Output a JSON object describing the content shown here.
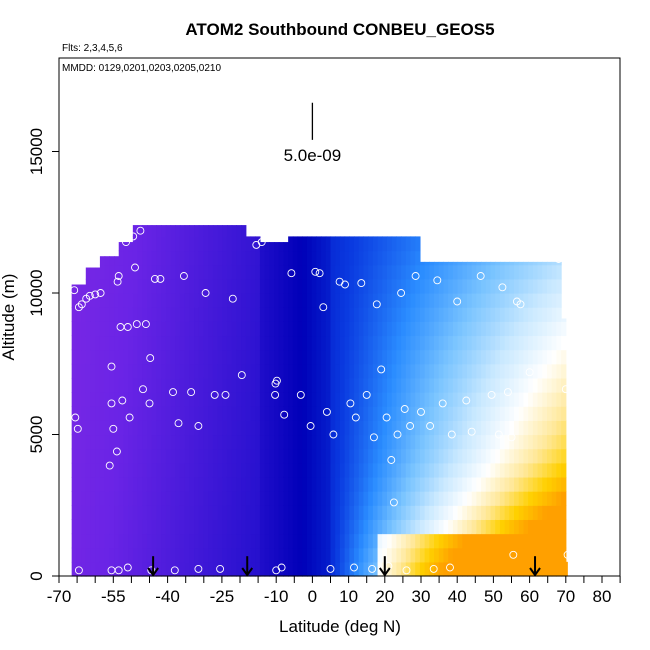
{
  "chart_data": {
    "type": "heatmap",
    "title": "ATOM2 Southbound CONBEU_GEOS5",
    "flights_label": "Flts: 2,3,4,5,6",
    "dates_label": "MMDD: 0129,0201,0203,0205,0210",
    "xlabel": "Latitude (deg N)",
    "ylabel": "Altitude (m)",
    "xlim": [
      -70,
      85
    ],
    "ylim": [
      0,
      17500
    ],
    "x_ticks": [
      -70,
      -65,
      -60,
      -55,
      -50,
      -45,
      -40,
      -35,
      -30,
      -25,
      -20,
      -15,
      -10,
      -5,
      0,
      5,
      10,
      15,
      20,
      25,
      30,
      35,
      40,
      45,
      50,
      55,
      60,
      65,
      70,
      75,
      80,
      85
    ],
    "x_tick_labels": [
      "-70",
      "-55",
      "-40",
      "-25",
      "-10",
      "0",
      "10",
      "20",
      "30",
      "40",
      "50",
      "60",
      "70",
      "80"
    ],
    "x_tick_label_values": [
      -70,
      -55,
      -40,
      -25,
      -10,
      0,
      10,
      20,
      30,
      40,
      50,
      60,
      70,
      80
    ],
    "y_ticks": [
      0,
      5000,
      10000,
      15000
    ],
    "y_tick_labels": [
      "0",
      "5000",
      "10000",
      "15000"
    ],
    "scale_bar": {
      "label": "5.0e-09",
      "x": 0,
      "y_bottom": 15800,
      "y_top": 17500
    },
    "color_scale": [
      "#8a2be2",
      "#6a24e6",
      "#2a12d0",
      "#0000b8",
      "#0a3ae0",
      "#2a8cff",
      "#7ac4ff",
      "#c8e8ff",
      "#ffffff",
      "#ffe89a",
      "#ffd000",
      "#ffa000"
    ],
    "field": {
      "note_top_boundary": "max altitude of gridded curtain per latitude (m)",
      "top_boundary": [
        [
          -66.5,
          10300
        ],
        [
          -62,
          10900
        ],
        [
          -59,
          11300
        ],
        [
          -54,
          11800
        ],
        [
          -49,
          12400
        ],
        [
          -21,
          12400
        ],
        [
          -18,
          12000
        ],
        [
          -15,
          11800
        ],
        [
          -10,
          11800
        ],
        [
          -7,
          12000
        ],
        [
          29,
          12000
        ],
        [
          29.1,
          11100
        ],
        [
          67,
          11100
        ],
        [
          68.3,
          9100
        ],
        [
          69.5,
          7400
        ],
        [
          70.4,
          7400
        ],
        [
          70.4,
          500
        ]
      ],
      "lat_min": -66.5,
      "lat_max": 70.4
    },
    "markers": [
      {
        "lat": -65.8,
        "alt": 10100
      },
      {
        "lat": -65.5,
        "alt": 5600
      },
      {
        "lat": -64.8,
        "alt": 5200
      },
      {
        "lat": -64.5,
        "alt": 9500
      },
      {
        "lat": -63.7,
        "alt": 9600
      },
      {
        "lat": -62.5,
        "alt": 9800
      },
      {
        "lat": -61.5,
        "alt": 9900
      },
      {
        "lat": -60,
        "alt": 9950
      },
      {
        "lat": -58.5,
        "alt": 10000
      },
      {
        "lat": -56,
        "alt": 3900
      },
      {
        "lat": -55.5,
        "alt": 7400
      },
      {
        "lat": -55.5,
        "alt": 6100
      },
      {
        "lat": -55,
        "alt": 5200
      },
      {
        "lat": -54,
        "alt": 4400
      },
      {
        "lat": -53.8,
        "alt": 10400
      },
      {
        "lat": -53.5,
        "alt": 10600
      },
      {
        "lat": -53,
        "alt": 8800
      },
      {
        "lat": -52.5,
        "alt": 6200
      },
      {
        "lat": -51.5,
        "alt": 11800
      },
      {
        "lat": -51,
        "alt": 8800
      },
      {
        "lat": -50.5,
        "alt": 5600
      },
      {
        "lat": -49.5,
        "alt": 12000
      },
      {
        "lat": -49,
        "alt": 10900
      },
      {
        "lat": -48.5,
        "alt": 8900
      },
      {
        "lat": -47.5,
        "alt": 12200
      },
      {
        "lat": -46.8,
        "alt": 6600
      },
      {
        "lat": -46,
        "alt": 8900
      },
      {
        "lat": -45,
        "alt": 6100
      },
      {
        "lat": -44.8,
        "alt": 7700
      },
      {
        "lat": -43.5,
        "alt": 10500
      },
      {
        "lat": -42,
        "alt": 10500
      },
      {
        "lat": -38.5,
        "alt": 6500
      },
      {
        "lat": -37,
        "alt": 5400
      },
      {
        "lat": -35.5,
        "alt": 10600
      },
      {
        "lat": -33.5,
        "alt": 6500
      },
      {
        "lat": -31.5,
        "alt": 5300
      },
      {
        "lat": -29.5,
        "alt": 10000
      },
      {
        "lat": -27,
        "alt": 6400
      },
      {
        "lat": -24,
        "alt": 6400
      },
      {
        "lat": -22,
        "alt": 9800
      },
      {
        "lat": -19.5,
        "alt": 7100
      },
      {
        "lat": -15.5,
        "alt": 11700
      },
      {
        "lat": -14,
        "alt": 11800
      },
      {
        "lat": -12,
        "alt": 12000
      },
      {
        "lat": -11.2,
        "alt": 12000
      },
      {
        "lat": -10.3,
        "alt": 12000
      },
      {
        "lat": -10.3,
        "alt": 6400
      },
      {
        "lat": -10.2,
        "alt": 6800
      },
      {
        "lat": -9.8,
        "alt": 6900
      },
      {
        "lat": -7.8,
        "alt": 5700
      },
      {
        "lat": -5.8,
        "alt": 10700
      },
      {
        "lat": -3.2,
        "alt": 6400
      },
      {
        "lat": -0.5,
        "alt": 5300
      },
      {
        "lat": 0.8,
        "alt": 10750
      },
      {
        "lat": 2,
        "alt": 10700
      },
      {
        "lat": 3,
        "alt": 9500
      },
      {
        "lat": 4,
        "alt": 5800
      },
      {
        "lat": 5.8,
        "alt": 5000
      },
      {
        "lat": 7.5,
        "alt": 10400
      },
      {
        "lat": 9,
        "alt": 10300
      },
      {
        "lat": 10.5,
        "alt": 6100
      },
      {
        "lat": 12,
        "alt": 5600
      },
      {
        "lat": 13.5,
        "alt": 10350
      },
      {
        "lat": 15,
        "alt": 6400
      },
      {
        "lat": 17,
        "alt": 4900
      },
      {
        "lat": 17.8,
        "alt": 9600
      },
      {
        "lat": 19,
        "alt": 7300
      },
      {
        "lat": 20.5,
        "alt": 5600
      },
      {
        "lat": 21.8,
        "alt": 4100
      },
      {
        "lat": 22.5,
        "alt": 2600
      },
      {
        "lat": 23.5,
        "alt": 5000
      },
      {
        "lat": 24.5,
        "alt": 10000
      },
      {
        "lat": 25.5,
        "alt": 5900
      },
      {
        "lat": 27,
        "alt": 5300
      },
      {
        "lat": 28.5,
        "alt": 10600
      },
      {
        "lat": 30,
        "alt": 5800
      },
      {
        "lat": 32.5,
        "alt": 5300
      },
      {
        "lat": 34.5,
        "alt": 10450
      },
      {
        "lat": 36,
        "alt": 6100
      },
      {
        "lat": 38.5,
        "alt": 5000
      },
      {
        "lat": 40,
        "alt": 9700
      },
      {
        "lat": 42.5,
        "alt": 6200
      },
      {
        "lat": 44,
        "alt": 5100
      },
      {
        "lat": 46.5,
        "alt": 10600
      },
      {
        "lat": 49.5,
        "alt": 6400
      },
      {
        "lat": 51.5,
        "alt": 5000
      },
      {
        "lat": 52.5,
        "alt": 10200
      },
      {
        "lat": 54,
        "alt": 6500
      },
      {
        "lat": 55,
        "alt": 4900
      },
      {
        "lat": 56.5,
        "alt": 9700
      },
      {
        "lat": 57.5,
        "alt": 9600
      },
      {
        "lat": 60,
        "alt": 7200
      },
      {
        "lat": 65.5,
        "alt": 11300
      },
      {
        "lat": 68,
        "alt": 11200
      },
      {
        "lat": 70,
        "alt": 6600
      },
      {
        "lat": -64.5,
        "alt": 200
      },
      {
        "lat": -55.5,
        "alt": 200
      },
      {
        "lat": -53.5,
        "alt": 200
      },
      {
        "lat": -51,
        "alt": 300
      },
      {
        "lat": -44.5,
        "alt": 200
      },
      {
        "lat": -38,
        "alt": 200
      },
      {
        "lat": -31.5,
        "alt": 250
      },
      {
        "lat": -25.5,
        "alt": 250
      },
      {
        "lat": -10,
        "alt": 200
      },
      {
        "lat": -8.5,
        "alt": 300
      },
      {
        "lat": 5,
        "alt": 250
      },
      {
        "lat": 11.5,
        "alt": 300
      },
      {
        "lat": 16.5,
        "alt": 250
      },
      {
        "lat": 21,
        "alt": 350
      },
      {
        "lat": 26,
        "alt": 200
      },
      {
        "lat": 33.5,
        "alt": 250
      },
      {
        "lat": 38,
        "alt": 300
      },
      {
        "lat": 55.5,
        "alt": 750
      },
      {
        "lat": 70.5,
        "alt": 750
      }
    ],
    "arrows": [
      {
        "lat": -44,
        "alt_top": 700,
        "alt_bottom": 0
      },
      {
        "lat": -18,
        "alt_top": 700,
        "alt_bottom": 0
      },
      {
        "lat": 20,
        "alt_top": 700,
        "alt_bottom": 0
      },
      {
        "lat": 61.5,
        "alt_top": 700,
        "alt_bottom": 0
      }
    ],
    "grid": false,
    "legend": "none"
  }
}
